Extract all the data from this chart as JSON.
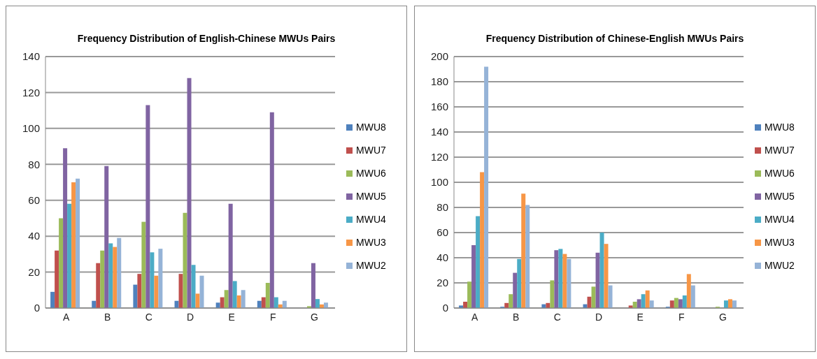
{
  "chart_data": [
    {
      "type": "bar",
      "title": "Frequency Distribution of English-Chinese  MWUs Pairs",
      "categories": [
        "A",
        "B",
        "C",
        "D",
        "E",
        "F",
        "G"
      ],
      "series": [
        {
          "name": "MWU8",
          "color": "#4f81bd",
          "values": [
            9,
            4,
            13,
            4,
            3,
            4,
            0
          ]
        },
        {
          "name": "MWU7",
          "color": "#c0504d",
          "values": [
            32,
            25,
            19,
            19,
            6,
            6,
            0
          ]
        },
        {
          "name": "MWU6",
          "color": "#9bbb59",
          "values": [
            50,
            32,
            48,
            53,
            10,
            14,
            1
          ]
        },
        {
          "name": "MWU5",
          "color": "#8064a2",
          "values": [
            89,
            79,
            113,
            128,
            58,
            109,
            25
          ]
        },
        {
          "name": "MWU4",
          "color": "#4bacc6",
          "values": [
            58,
            36,
            31,
            24,
            15,
            6,
            5
          ]
        },
        {
          "name": "MWU3",
          "color": "#f79646",
          "values": [
            70,
            34,
            18,
            8,
            7,
            2,
            2
          ]
        },
        {
          "name": "MWU2",
          "color": "#95b3d7",
          "values": [
            72,
            39,
            33,
            18,
            10,
            4,
            3
          ]
        }
      ],
      "ylim": [
        0,
        140
      ],
      "yticks": [
        0,
        20,
        40,
        60,
        80,
        100,
        120,
        140
      ],
      "grid": "y",
      "legend": "right"
    },
    {
      "type": "bar",
      "title": "Frequency Distribution of Chinese-English  MWUs Pairs",
      "categories": [
        "A",
        "B",
        "C",
        "D",
        "E",
        "F",
        "G"
      ],
      "series": [
        {
          "name": "MWU8",
          "color": "#4f81bd",
          "values": [
            2,
            1,
            3,
            3,
            0,
            1,
            0
          ]
        },
        {
          "name": "MWU7",
          "color": "#c0504d",
          "values": [
            5,
            4,
            4,
            9,
            2,
            6,
            0
          ]
        },
        {
          "name": "MWU6",
          "color": "#9bbb59",
          "values": [
            21,
            11,
            22,
            17,
            5,
            8,
            1
          ]
        },
        {
          "name": "MWU5",
          "color": "#8064a2",
          "values": [
            50,
            28,
            46,
            44,
            7,
            7,
            0
          ]
        },
        {
          "name": "MWU4",
          "color": "#4bacc6",
          "values": [
            73,
            39,
            47,
            60,
            11,
            10,
            6
          ]
        },
        {
          "name": "MWU3",
          "color": "#f79646",
          "values": [
            108,
            91,
            43,
            51,
            14,
            27,
            7
          ]
        },
        {
          "name": "MWU2",
          "color": "#95b3d7",
          "values": [
            192,
            82,
            39,
            18,
            6,
            18,
            6
          ]
        }
      ],
      "ylim": [
        0,
        200
      ],
      "yticks": [
        0,
        20,
        40,
        60,
        80,
        100,
        120,
        140,
        160,
        180,
        200
      ],
      "grid": "y",
      "legend": "right"
    }
  ]
}
